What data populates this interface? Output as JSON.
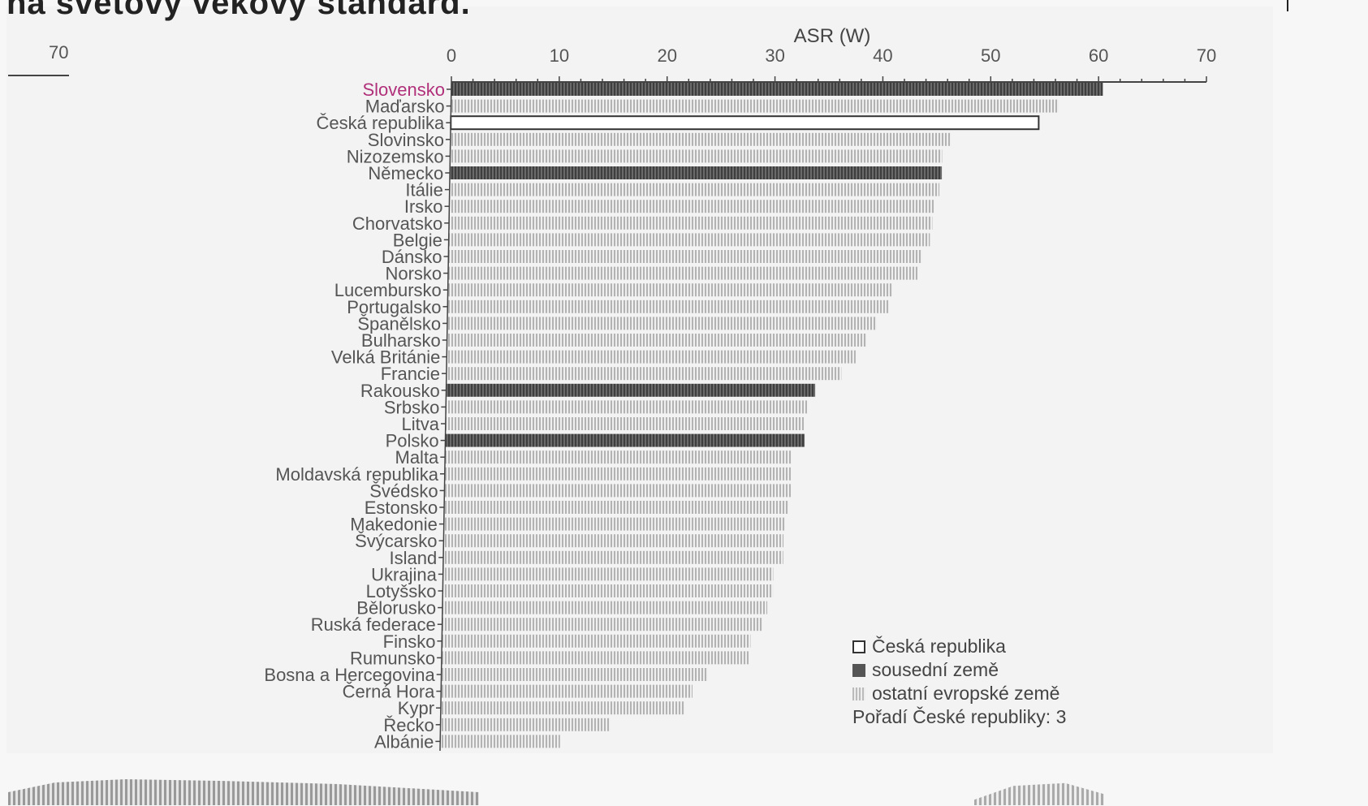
{
  "heading": "na světový věkový standard.",
  "left_tick": "70",
  "chart_data": {
    "type": "bar",
    "orientation": "horizontal",
    "xlabel": "ASR (W)",
    "xlim": [
      0,
      70
    ],
    "xticks": [
      0,
      10,
      20,
      30,
      40,
      50,
      60,
      70
    ],
    "categories": [
      "Slovensko",
      "Maďarsko",
      "Česká republika",
      "Slovinsko",
      "Nizozemsko",
      "Německo",
      "Itálie",
      "Irsko",
      "Chorvatsko",
      "Belgie",
      "Dánsko",
      "Norsko",
      "Lucembursko",
      "Portugalsko",
      "Španělsko",
      "Bulharsko",
      "Velká Británie",
      "Francie",
      "Rakousko",
      "Srbsko",
      "Litva",
      "Polsko",
      "Malta",
      "Moldavská republika",
      "Švédsko",
      "Estonsko",
      "Makedonie",
      "Švýcarsko",
      "Island",
      "Ukrajina",
      "Lotyšsko",
      "Bělorusko",
      "Ruská federace",
      "Finsko",
      "Rumunsko",
      "Bosna a Hercegovina",
      "Černá Hora",
      "Kypr",
      "Řecko",
      "Albánie"
    ],
    "values": [
      60.4,
      56.3,
      54.5,
      46.4,
      45.6,
      45.6,
      45.4,
      44.9,
      44.8,
      44.6,
      43.9,
      43.5,
      41.2,
      40.9,
      39.8,
      38.9,
      37.9,
      36.6,
      34.2,
      33.5,
      33.2,
      33.3,
      32.1,
      32.1,
      32.1,
      31.9,
      31.6,
      31.5,
      31.5,
      30.6,
      30.6,
      30.1,
      29.7,
      28.6,
      28.5,
      24.7,
      23.3,
      22.6,
      15.7,
      11.1
    ],
    "groups": [
      "neighbor",
      "other",
      "czech",
      "other",
      "other",
      "neighbor",
      "other",
      "other",
      "other",
      "other",
      "other",
      "other",
      "other",
      "other",
      "other",
      "other",
      "other",
      "other",
      "neighbor",
      "other",
      "other",
      "neighbor",
      "other",
      "other",
      "other",
      "other",
      "other",
      "other",
      "other",
      "other",
      "other",
      "other",
      "other",
      "other",
      "other",
      "other",
      "other",
      "other",
      "other",
      "other"
    ],
    "colors": {
      "czech": "#ffffff",
      "neighbor": "#5a5a5a",
      "other": "#c4c4c4",
      "highlight_label": "#b0307a"
    },
    "legend": {
      "czech": "Česká republika",
      "neighbor": "sousední země",
      "other": "ostatní evropské země",
      "rank_note": "Pořadí České republiky: 3"
    }
  }
}
